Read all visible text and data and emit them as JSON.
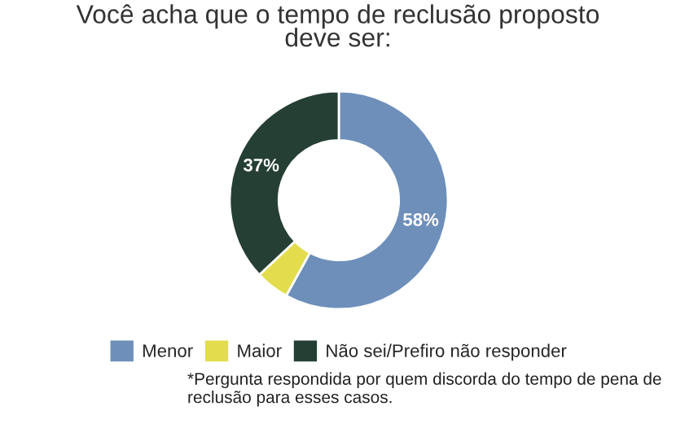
{
  "chart_data": {
    "type": "donut",
    "title": "Você acha que o tempo de reclusão proposto\ndeve ser:",
    "categories": [
      "Menor",
      "Maior",
      "Não sei/Prefiro não responder"
    ],
    "values": [
      58,
      5,
      37
    ],
    "colors": [
      "#6d8fba",
      "#e3dd4e",
      "#253f34"
    ],
    "value_labels": [
      "58%",
      null,
      "37%"
    ],
    "legend": "bottom",
    "annotations": [
      "*Pergunta respondida por quem discorda do tempo de pena de reclusão para esses casos."
    ]
  }
}
